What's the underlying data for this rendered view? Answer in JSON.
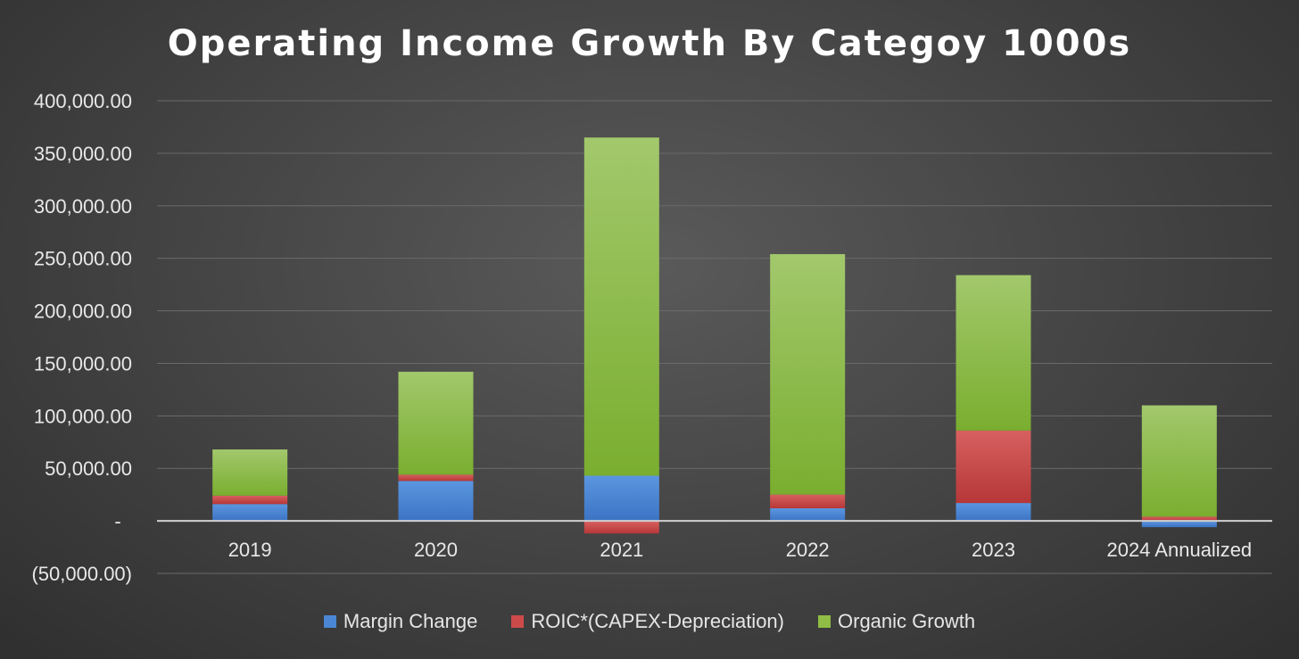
{
  "chart_data": {
    "type": "bar",
    "stacked": true,
    "title": "Operating Income Growth By Categoy 1000s",
    "xlabel": "",
    "ylabel": "",
    "ylim": [
      -50000,
      400000
    ],
    "yticks": [
      {
        "value": 400000,
        "label": "400,000.00"
      },
      {
        "value": 350000,
        "label": "350,000.00"
      },
      {
        "value": 300000,
        "label": "300,000.00"
      },
      {
        "value": 250000,
        "label": "250,000.00"
      },
      {
        "value": 200000,
        "label": "200,000.00"
      },
      {
        "value": 150000,
        "label": "150,000.00"
      },
      {
        "value": 100000,
        "label": "100,000.00"
      },
      {
        "value": 50000,
        "label": "50,000.00"
      },
      {
        "value": 0,
        "label": "-"
      },
      {
        "value": -50000,
        "label": "(50,000.00)"
      }
    ],
    "categories": [
      "2019",
      "2020",
      "2021",
      "2022",
      "2023",
      "2024 Annualized"
    ],
    "series": [
      {
        "name": "Margin Change",
        "color": "#4a86d4",
        "values": [
          16000,
          38000,
          43000,
          12000,
          17000,
          -6000
        ]
      },
      {
        "name": "ROIC*(CAPEX-Depreciation)",
        "color": "#cd4a4a",
        "values": [
          8000,
          6000,
          -12000,
          13000,
          69000,
          4000
        ]
      },
      {
        "name": "Organic Growth",
        "color": "#8fbd45",
        "values": [
          44000,
          98000,
          322000,
          229000,
          148000,
          106000
        ]
      }
    ],
    "grid": true,
    "legend_position": "bottom"
  }
}
